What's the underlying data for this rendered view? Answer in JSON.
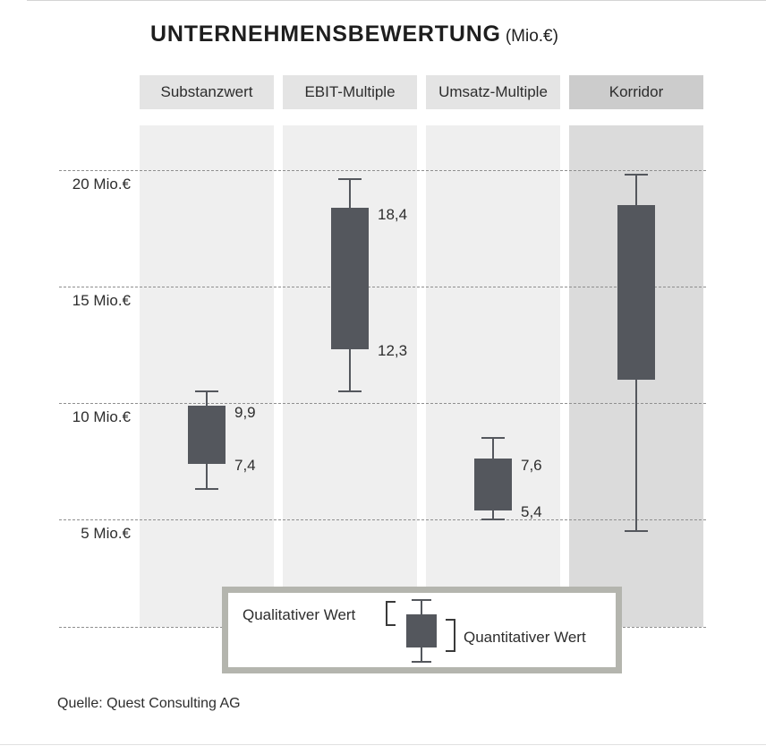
{
  "title": {
    "main": "UNTERNEHMENSBEWERTUNG",
    "unit": "(Mio.€)"
  },
  "source": "Quelle: Quest Consulting AG",
  "legend": {
    "qualitative_label": "Qualitativer Wert",
    "quantitative_label": "Quantitativer Wert",
    "icons": {
      "qualitative_bracket": "range-bracket-open-right",
      "quantitative_bracket": "range-bracket-open-left",
      "glyph": "box-whisker"
    }
  },
  "colors": {
    "box": "#54575d",
    "band_light": "#efefef",
    "band_dark": "#dbdbdb",
    "header_light": "#e4e4e4",
    "header_dark": "#cccccc",
    "grid": "#8f8f8f",
    "legend_border": "#b4b5ae",
    "text": "#2d2d2d"
  },
  "chart_data": {
    "type": "box-range",
    "title": "UNTERNEHMENSBEWERTUNG (Mio.€)",
    "ylabel": "Mio.€",
    "ylim": [
      0.4,
      21.9
    ],
    "grid": "dashed-horizontal",
    "y_ticks": [
      {
        "value": 20,
        "label": "20 Mio.€"
      },
      {
        "value": 15,
        "label": "15 Mio.€"
      },
      {
        "value": 10,
        "label": "10 Mio.€"
      },
      {
        "value": 5,
        "label": "5 Mio.€"
      }
    ],
    "categories": [
      "Substanzwert",
      "EBIT-Multiple",
      "Umsatz-Multiple",
      "Korridor"
    ],
    "series": [
      {
        "name": "Substanzwert",
        "quant_low": 7.4,
        "quant_high": 9.9,
        "qual_low": 6.3,
        "qual_high": 10.5,
        "labels": {
          "high": "9,9",
          "low": "7,4"
        },
        "highlight": false
      },
      {
        "name": "EBIT-Multiple",
        "quant_low": 12.3,
        "quant_high": 18.4,
        "qual_low": 10.5,
        "qual_high": 19.6,
        "labels": {
          "high": "18,4",
          "low": "12,3"
        },
        "highlight": false
      },
      {
        "name": "Umsatz-Multiple",
        "quant_low": 5.4,
        "quant_high": 7.6,
        "qual_low": 5.0,
        "qual_high": 8.5,
        "labels": {
          "high": "7,6",
          "low": "5,4"
        },
        "highlight": false
      },
      {
        "name": "Korridor",
        "quant_low": 11.0,
        "quant_high": 18.5,
        "qual_low": 4.5,
        "qual_high": 19.8,
        "labels": null,
        "highlight": true
      }
    ]
  }
}
